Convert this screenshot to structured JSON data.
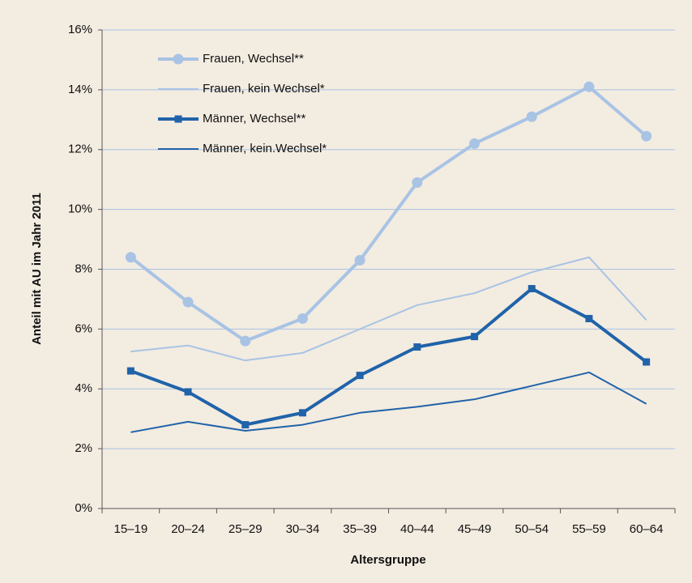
{
  "chart_data": {
    "type": "line",
    "y_label": "Anteil mit AU im Jahr 2011",
    "x_label": "Altersgruppe",
    "categories": [
      "15–19",
      "20–24",
      "25–29",
      "30–34",
      "35–39",
      "40–44",
      "45–49",
      "50–54",
      "55–59",
      "60–64"
    ],
    "series": [
      {
        "name": "Frauen, Wechsel**",
        "color": "#a8c3e4",
        "marker": "circle",
        "values": [
          8.4,
          6.9,
          5.6,
          6.35,
          8.3,
          10.9,
          12.2,
          13.1,
          14.1,
          12.45
        ]
      },
      {
        "name": "Frauen, kein Wechsel*",
        "color": "#a8c3e4",
        "values": [
          5.25,
          5.45,
          4.95,
          5.2,
          6.0,
          6.8,
          7.2,
          7.9,
          8.4,
          6.3
        ]
      },
      {
        "name": "Männer, Wechsel**",
        "color": "#2063a9",
        "marker": "square",
        "values": [
          4.6,
          3.9,
          2.8,
          3.2,
          4.45,
          5.4,
          5.75,
          7.35,
          6.35,
          4.9
        ]
      },
      {
        "name": "Männer, kein.Wechsel*",
        "color": "#2063a9",
        "values": [
          2.55,
          2.9,
          2.6,
          2.8,
          3.2,
          3.4,
          3.65,
          4.1,
          4.55,
          3.5
        ]
      }
    ],
    "ylim": [
      0,
      16
    ],
    "yticks": [
      {
        "value": 0,
        "label": "0%"
      },
      {
        "value": 2,
        "label": "2%"
      },
      {
        "value": 4,
        "label": "4%"
      },
      {
        "value": 6,
        "label": "6%"
      },
      {
        "value": 8,
        "label": "8%"
      },
      {
        "value": 10,
        "label": "10%"
      },
      {
        "value": 12,
        "label": "12%"
      },
      {
        "value": 14,
        "label": "14%"
      },
      {
        "value": 16,
        "label": "16%"
      }
    ],
    "grid": true,
    "legend": "top-left"
  }
}
